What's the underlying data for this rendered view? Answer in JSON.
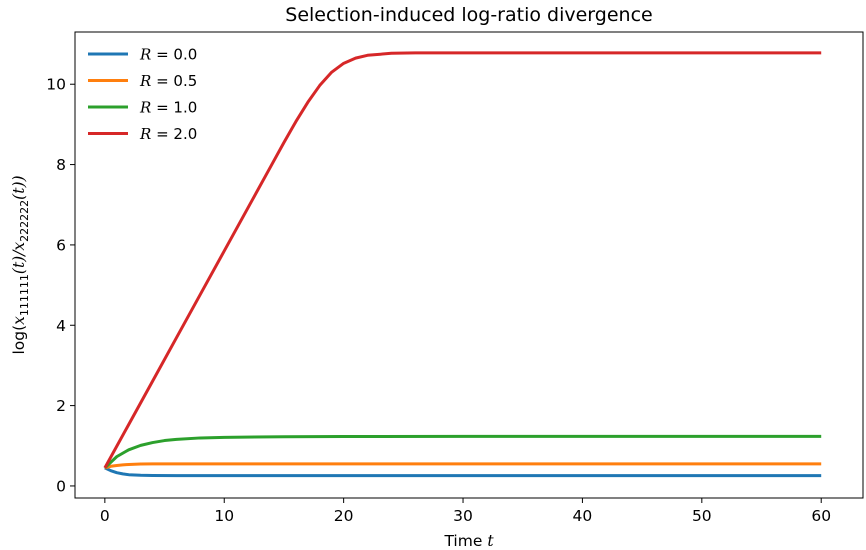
{
  "chart_data": {
    "type": "line",
    "title": "Selection-induced log-ratio divergence",
    "xlabel": "Time",
    "xlabel_var": "t",
    "ylabel_prefix": "log(",
    "ylabel_x1": "x",
    "ylabel_sub1": "111111",
    "ylabel_t1": "(t)/",
    "ylabel_x2": "x",
    "ylabel_sub2": "222222",
    "ylabel_t2": "(t))",
    "xlim": [
      -2.5,
      63.5
    ],
    "ylim": [
      -0.3,
      11.3
    ],
    "xticks": [
      0,
      10,
      20,
      30,
      40,
      50,
      60
    ],
    "yticks": [
      0,
      2,
      4,
      6,
      8,
      10
    ],
    "grid": false,
    "legend_position": "top-left",
    "series": [
      {
        "name": "= 0.0",
        "symbol": "R",
        "color": "#1f77b4",
        "x": [
          0,
          0.5,
          1,
          1.5,
          2,
          3,
          4,
          6,
          10,
          20,
          30,
          40,
          50,
          60
        ],
        "y": [
          0.45,
          0.38,
          0.33,
          0.3,
          0.28,
          0.265,
          0.26,
          0.258,
          0.257,
          0.256,
          0.256,
          0.256,
          0.256,
          0.256
        ]
      },
      {
        "name": "= 0.5",
        "symbol": "R",
        "color": "#ff7f0e",
        "x": [
          0,
          0.5,
          1,
          1.5,
          2,
          3,
          4,
          6,
          10,
          20,
          30,
          40,
          50,
          60
        ],
        "y": [
          0.45,
          0.49,
          0.51,
          0.525,
          0.535,
          0.545,
          0.548,
          0.55,
          0.55,
          0.55,
          0.55,
          0.55,
          0.55,
          0.55
        ]
      },
      {
        "name": "= 1.0",
        "symbol": "R",
        "color": "#2ca02c",
        "x": [
          0,
          1,
          2,
          3,
          4,
          5,
          6,
          8,
          10,
          15,
          20,
          30,
          40,
          50,
          60
        ],
        "y": [
          0.45,
          0.73,
          0.9,
          1.01,
          1.08,
          1.13,
          1.16,
          1.195,
          1.21,
          1.225,
          1.23,
          1.235,
          1.235,
          1.235,
          1.235
        ]
      },
      {
        "name": "= 2.0",
        "symbol": "R",
        "color": "#d62728",
        "x": [
          0,
          2,
          4,
          6,
          8,
          10,
          12,
          14,
          15,
          16,
          17,
          18,
          19,
          20,
          21,
          22,
          24,
          26,
          30,
          40,
          50,
          60
        ],
        "y": [
          0.45,
          1.53,
          2.61,
          3.69,
          4.77,
          5.85,
          6.93,
          8.01,
          8.55,
          9.07,
          9.55,
          9.97,
          10.3,
          10.52,
          10.65,
          10.72,
          10.77,
          10.78,
          10.78,
          10.78,
          10.78,
          10.78
        ]
      }
    ]
  }
}
